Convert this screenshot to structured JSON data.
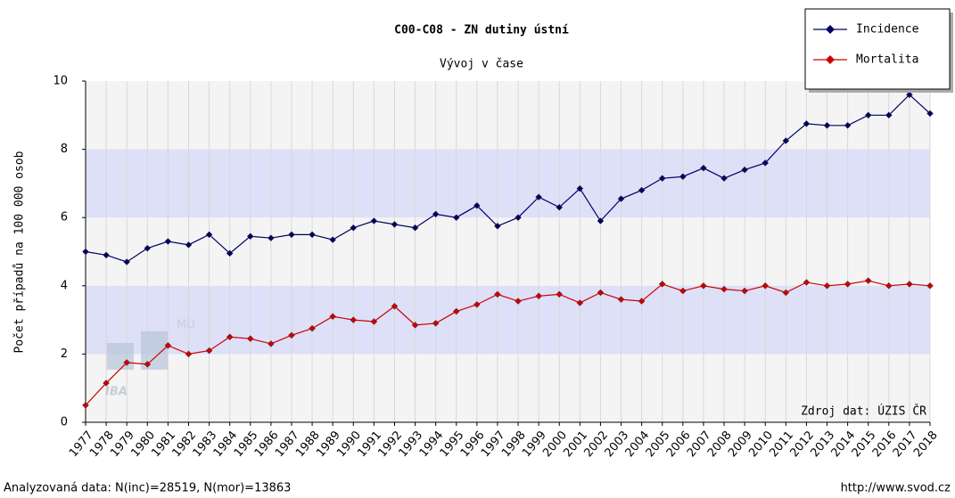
{
  "chart_data": {
    "type": "line",
    "title": "C00-C08 - ZN dutiny ústní",
    "subtitle": "Vývoj v čase",
    "y_label": "Počet případů na 100 000 osob",
    "source": "Zdroj dat: ÚZIS ČR",
    "footer_left": "Analyzovaná data: N(inc)=28519, N(mor)=13863",
    "footer_right": "http://www.svod.cz",
    "logo_text": "IBA",
    "logo_subtext": "MU",
    "categories": [
      "1977",
      "1978",
      "1979",
      "1980",
      "1981",
      "1982",
      "1983",
      "1984",
      "1985",
      "1986",
      "1987",
      "1988",
      "1989",
      "1990",
      "1991",
      "1992",
      "1993",
      "1994",
      "1995",
      "1996",
      "1997",
      "1998",
      "1999",
      "2000",
      "2001",
      "2002",
      "2003",
      "2004",
      "2005",
      "2006",
      "2007",
      "2008",
      "2009",
      "2010",
      "2011",
      "2012",
      "2013",
      "2014",
      "2015",
      "2016",
      "2017",
      "2018"
    ],
    "series": [
      {
        "name": "Incidence",
        "color": "#000066",
        "values": [
          5.0,
          4.9,
          4.7,
          5.1,
          5.3,
          5.2,
          5.5,
          4.95,
          5.45,
          5.4,
          5.5,
          5.5,
          5.35,
          5.7,
          5.9,
          5.8,
          5.7,
          6.1,
          6.0,
          6.35,
          5.75,
          6.0,
          6.6,
          6.3,
          6.85,
          5.9,
          6.55,
          6.8,
          7.15,
          7.2,
          7.45,
          7.15,
          7.4,
          7.6,
          8.25,
          8.75,
          8.7,
          8.7,
          9.0,
          9.0,
          9.6,
          9.05
        ]
      },
      {
        "name": "Mortalita",
        "color": "#cc0000",
        "values": [
          0.5,
          1.15,
          1.75,
          1.7,
          2.25,
          2.0,
          2.1,
          2.5,
          2.45,
          2.3,
          2.55,
          2.75,
          3.1,
          3.0,
          2.95,
          3.4,
          2.85,
          2.9,
          3.25,
          3.45,
          3.75,
          3.55,
          3.7,
          3.75,
          3.5,
          3.8,
          3.6,
          3.55,
          4.05,
          3.85,
          4.0,
          3.9,
          3.85,
          4.0,
          3.8,
          4.1,
          4.0,
          4.05,
          4.15,
          4.0,
          4.05,
          4.0
        ]
      }
    ],
    "ylim": [
      0,
      10
    ],
    "yticks": [
      0,
      2,
      4,
      6,
      8,
      10
    ],
    "grid": true,
    "legend": "top-right"
  }
}
